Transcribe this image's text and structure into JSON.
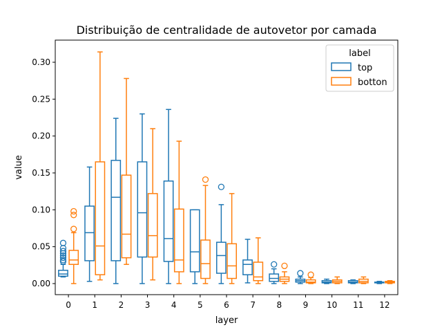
{
  "chart_data": {
    "type": "box",
    "title": "Distribuição de centralidade de autovetor por camada",
    "xlabel": "layer",
    "ylabel": "value",
    "categories": [
      "0",
      "1",
      "2",
      "3",
      "4",
      "5",
      "6",
      "7",
      "8",
      "9",
      "10",
      "11",
      "12"
    ],
    "ylim": [
      -0.015,
      0.33
    ],
    "yticks": [
      "0.00",
      "0.05",
      "0.10",
      "0.15",
      "0.20",
      "0.25",
      "0.30"
    ],
    "legend": {
      "title": "label",
      "position": "top-right"
    },
    "series": [
      {
        "name": "top",
        "color": "#1f77b4",
        "boxes": [
          {
            "whislo": 0.009,
            "q1": 0.01,
            "med": 0.013,
            "q3": 0.018,
            "whishi": 0.026,
            "fliers": [
              0.03,
              0.032,
              0.035,
              0.038,
              0.041,
              0.044,
              0.048,
              0.055
            ]
          },
          {
            "whislo": 0.003,
            "q1": 0.031,
            "med": 0.069,
            "q3": 0.105,
            "whishi": 0.158,
            "fliers": []
          },
          {
            "whislo": 0.0,
            "q1": 0.031,
            "med": 0.117,
            "q3": 0.167,
            "whishi": 0.224,
            "fliers": []
          },
          {
            "whislo": 0.0,
            "q1": 0.036,
            "med": 0.096,
            "q3": 0.165,
            "whishi": 0.23,
            "fliers": []
          },
          {
            "whislo": 0.0,
            "q1": 0.03,
            "med": 0.061,
            "q3": 0.139,
            "whishi": 0.236,
            "fliers": []
          },
          {
            "whislo": 0.0,
            "q1": 0.016,
            "med": 0.043,
            "q3": 0.1,
            "whishi": 0.1,
            "fliers": []
          },
          {
            "whislo": 0.0,
            "q1": 0.014,
            "med": 0.038,
            "q3": 0.056,
            "whishi": 0.107,
            "fliers": [
              0.131
            ]
          },
          {
            "whislo": 0.001,
            "q1": 0.012,
            "med": 0.026,
            "q3": 0.032,
            "whishi": 0.06,
            "fliers": []
          },
          {
            "whislo": 0.0,
            "q1": 0.003,
            "med": 0.007,
            "q3": 0.013,
            "whishi": 0.02,
            "fliers": [
              0.026
            ]
          },
          {
            "whislo": 0.0,
            "q1": 0.002,
            "med": 0.004,
            "q3": 0.006,
            "whishi": 0.009,
            "fliers": [
              0.014
            ]
          },
          {
            "whislo": 0.0,
            "q1": 0.001,
            "med": 0.002,
            "q3": 0.004,
            "whishi": 0.006,
            "fliers": []
          },
          {
            "whislo": 0.0,
            "q1": 0.001,
            "med": 0.002,
            "q3": 0.004,
            "whishi": 0.005,
            "fliers": []
          },
          {
            "whislo": 0.0,
            "q1": 0.001,
            "med": 0.0015,
            "q3": 0.002,
            "whishi": 0.003,
            "fliers": []
          }
        ]
      },
      {
        "name": "botton",
        "color": "#ff7f0e",
        "boxes": [
          {
            "whislo": 0.0,
            "q1": 0.026,
            "med": 0.032,
            "q3": 0.045,
            "whishi": 0.069,
            "fliers": [
              0.074,
              0.093,
              0.098
            ]
          },
          {
            "whislo": 0.005,
            "q1": 0.012,
            "med": 0.051,
            "q3": 0.165,
            "whishi": 0.314,
            "fliers": []
          },
          {
            "whislo": 0.026,
            "q1": 0.035,
            "med": 0.067,
            "q3": 0.147,
            "whishi": 0.278,
            "fliers": []
          },
          {
            "whislo": 0.005,
            "q1": 0.036,
            "med": 0.065,
            "q3": 0.122,
            "whishi": 0.21,
            "fliers": []
          },
          {
            "whislo": 0.0,
            "q1": 0.016,
            "med": 0.032,
            "q3": 0.101,
            "whishi": 0.193,
            "fliers": []
          },
          {
            "whislo": 0.0,
            "q1": 0.007,
            "med": 0.027,
            "q3": 0.059,
            "whishi": 0.133,
            "fliers": [
              0.141
            ]
          },
          {
            "whislo": 0.0,
            "q1": 0.007,
            "med": 0.024,
            "q3": 0.054,
            "whishi": 0.122,
            "fliers": []
          },
          {
            "whislo": 0.0,
            "q1": 0.004,
            "med": 0.009,
            "q3": 0.029,
            "whishi": 0.062,
            "fliers": []
          },
          {
            "whislo": 0.0,
            "q1": 0.003,
            "med": 0.006,
            "q3": 0.009,
            "whishi": 0.016,
            "fliers": [
              0.024
            ]
          },
          {
            "whislo": 0.0,
            "q1": 0.001,
            "med": 0.002,
            "q3": 0.005,
            "whishi": 0.008,
            "fliers": [
              0.012
            ]
          },
          {
            "whislo": 0.0,
            "q1": 0.001,
            "med": 0.003,
            "q3": 0.005,
            "whishi": 0.009,
            "fliers": []
          },
          {
            "whislo": 0.0,
            "q1": 0.001,
            "med": 0.003,
            "q3": 0.006,
            "whishi": 0.009,
            "fliers": []
          },
          {
            "whislo": 0.0,
            "q1": 0.001,
            "med": 0.002,
            "q3": 0.003,
            "whishi": 0.004,
            "fliers": []
          }
        ]
      }
    ]
  }
}
